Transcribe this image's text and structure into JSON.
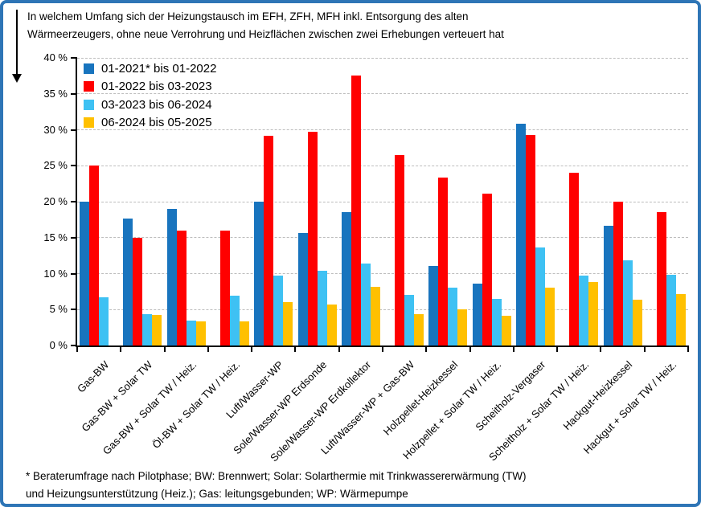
{
  "header": {
    "title": "In welchem Umfang sich der Heizungstausch im EFH, ZFH, MFH inkl. Entsorgung des alten\nWärmeerzeugers, ohne neue Verrohrung und Heizflächen zwischen zwei Erhebungen verteuert hat"
  },
  "footnote": {
    "text": "* Beraterumfrage nach Pilotphase; BW: Brennwert; Solar: Solarthermie mit Trinkwassererwärmung (TW)\nund Heizungsunterstützung (Heiz.); Gas: leitungsgebunden; WP: Wärmepumpe"
  },
  "colors": {
    "border": "#2E75B6",
    "gridline": "#BDBDBD",
    "axis": "#000000"
  },
  "chart_data": {
    "type": "bar",
    "title": "In welchem Umfang sich der Heizungstausch im EFH, ZFH, MFH inkl. Entsorgung des alten Wärmeerzeugers, ohne neue Verrohrung und Heizflächen zwischen zwei Erhebungen verteuert hat",
    "xlabel": "",
    "ylabel": "",
    "ylim": [
      0,
      40
    ],
    "ytick_step": 5,
    "ytick_labels": [
      "0 %",
      "5 %",
      "10 %",
      "15 %",
      "20 %",
      "25 %",
      "30 %",
      "35 %",
      "40 %"
    ],
    "grid": "horizontal-dashed",
    "legend_position": "top-left",
    "categories": [
      "Gas-BW",
      "Gas-BW + Solar TW",
      "Gas-BW + Solar TW / Heiz.",
      "Öl-BW + Solar TW / Heiz.",
      "Luft/Wasser-WP",
      "Sole/Wasser-WP Erdsonde",
      "Sole/Wasser-WP Erdkollektor",
      "Luft/Wasser-WP + Gas-BW",
      "Holzpellet-Heizkessel",
      "Holzpellet + Solar TW / Heiz.",
      "Scheitholz-Vergaser",
      "Scheitholz + Solar TW / Heiz.",
      "Hackgut-Heizkessel",
      "Hackgut + Solar TW / Heiz."
    ],
    "series": [
      {
        "name": "01-2021* bis 01-2022",
        "color": "#1874BE",
        "values": [
          20.0,
          17.6,
          19.0,
          null,
          20.0,
          15.6,
          18.5,
          null,
          11.1,
          8.6,
          30.8,
          null,
          16.7,
          null
        ]
      },
      {
        "name": "01-2022 bis 03-2023",
        "color": "#FF0000",
        "values": [
          25.0,
          15.0,
          16.0,
          16.0,
          29.2,
          29.7,
          37.5,
          26.5,
          23.3,
          21.1,
          29.3,
          24.0,
          20.0,
          18.6
        ]
      },
      {
        "name": "03-2023 bis 06-2024",
        "color": "#3EC1F3",
        "values": [
          6.7,
          4.4,
          3.5,
          6.9,
          9.7,
          10.4,
          11.4,
          7.0,
          8.1,
          6.5,
          13.6,
          9.7,
          11.9,
          9.8
        ]
      },
      {
        "name": "06-2024 bis 05-2025",
        "color": "#FFC000",
        "values": [
          null,
          4.2,
          3.3,
          3.3,
          6.0,
          5.7,
          8.2,
          4.4,
          5.0,
          4.1,
          8.0,
          8.8,
          6.4,
          7.1
        ]
      }
    ]
  }
}
